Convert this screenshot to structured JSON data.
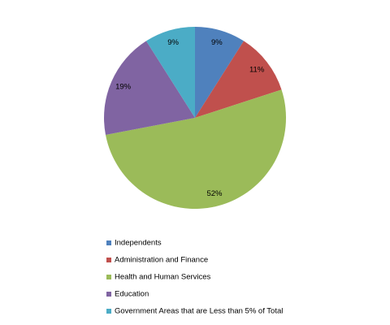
{
  "chart_data": {
    "type": "pie",
    "categories": [
      "Independents",
      "Administration and Finance",
      "Health and Human Services",
      "Education",
      "Government Areas that are Less than 5% of Total"
    ],
    "values": [
      9,
      11,
      52,
      19,
      9
    ],
    "value_labels": [
      "9%",
      "11%",
      "52%",
      "19%",
      "9%"
    ],
    "colors": [
      "#4f81bd",
      "#c0504d",
      "#9bbb59",
      "#8064a2",
      "#4bacc6"
    ],
    "legend": "bottom"
  }
}
